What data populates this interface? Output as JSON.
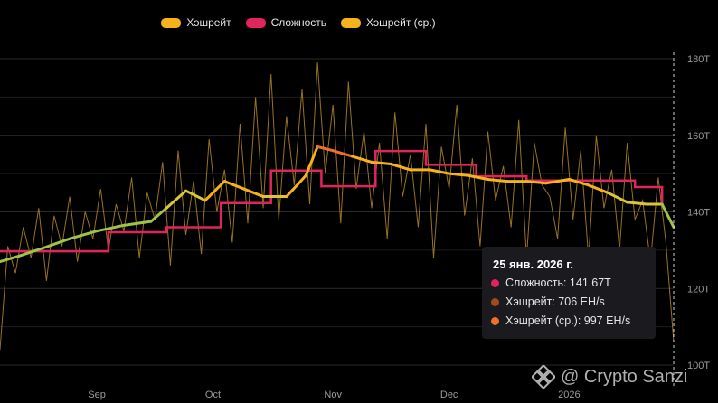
{
  "legend": {
    "items": [
      {
        "label": "Хэшрейт",
        "color": "#f5b21a"
      },
      {
        "label": "Сложность",
        "color": "#e0245e"
      },
      {
        "label": "Хэшрейт (ср.)",
        "color": "#f5b21a"
      }
    ]
  },
  "tooltip": {
    "date": "25 янв. 2026 г.",
    "rows": [
      {
        "text": "Сложность: 141.67T",
        "color": "#e0245e"
      },
      {
        "text": "Хэшрейт: 706 EH/s",
        "color": "#a04a22"
      },
      {
        "text": "Хэшрейт (ср.): 997 EH/s",
        "color": "#f0702a"
      }
    ]
  },
  "watermark": "@ Crypto Sanzi",
  "chart_data": {
    "type": "line",
    "title": "",
    "xlabel": "",
    "ylabel": "",
    "x_ticks": [
      "Sep",
      "Oct",
      "Nov",
      "Dec",
      "2026"
    ],
    "y_ticks": [
      "100T",
      "120T",
      "140T",
      "160T",
      "180T"
    ],
    "ylim": [
      100,
      182
    ],
    "grid": true,
    "legend_position": "top-center",
    "colors": {
      "hashrate": "#f5b21a",
      "difficulty": "#e0245e",
      "hashrate_avg_low": "#9fc24a",
      "hashrate_avg_high": "#f5b21a"
    },
    "series": [
      {
        "name": "Сложность",
        "type": "step",
        "x": [
          "2025-08-07",
          "2025-08-21",
          "2025-09-04",
          "2025-09-19",
          "2025-10-03",
          "2025-10-16",
          "2025-10-29",
          "2025-11-12",
          "2025-11-25",
          "2025-12-08",
          "2025-12-21",
          "2026-01-04",
          "2026-01-18",
          "2026-01-25"
        ],
        "values": [
          129.7,
          129.7,
          134.7,
          136.0,
          142.3,
          150.8,
          146.7,
          155.9,
          152.3,
          149.3,
          148.2,
          148.2,
          146.5,
          141.7
        ]
      },
      {
        "name": "Хэшрейт (ср.)",
        "x": [
          "2025-08-07",
          "2025-08-12",
          "2025-08-18",
          "2025-08-25",
          "2025-09-01",
          "2025-09-08",
          "2025-09-15",
          "2025-09-19",
          "2025-09-24",
          "2025-09-29",
          "2025-10-04",
          "2025-10-09",
          "2025-10-14",
          "2025-10-20",
          "2025-10-25",
          "2025-10-28",
          "2025-11-01",
          "2025-11-06",
          "2025-11-11",
          "2025-11-16",
          "2025-11-21",
          "2025-11-26",
          "2025-12-01",
          "2025-12-06",
          "2025-12-11",
          "2025-12-16",
          "2025-12-21",
          "2025-12-26",
          "2026-01-01",
          "2026-01-06",
          "2026-01-11",
          "2026-01-16",
          "2026-01-21",
          "2026-01-25",
          "2026-01-28"
        ],
        "values": [
          127,
          128.5,
          130.5,
          133,
          135,
          136.5,
          137.5,
          141,
          145.5,
          143,
          148,
          146,
          144,
          144,
          149.5,
          157,
          156,
          154.5,
          153,
          152.5,
          151,
          151,
          150,
          149.5,
          148.5,
          148,
          148,
          147.5,
          148.5,
          147,
          145,
          142.5,
          142,
          142,
          136
        ]
      },
      {
        "name": "Хэшрейт",
        "x": [
          "2025-08-07",
          "2025-08-09",
          "2025-08-11",
          "2025-08-13",
          "2025-08-15",
          "2025-08-17",
          "2025-08-19",
          "2025-08-21",
          "2025-08-23",
          "2025-08-25",
          "2025-08-27",
          "2025-08-29",
          "2025-08-31",
          "2025-09-02",
          "2025-09-04",
          "2025-09-06",
          "2025-09-08",
          "2025-09-10",
          "2025-09-12",
          "2025-09-14",
          "2025-09-16",
          "2025-09-18",
          "2025-09-20",
          "2025-09-22",
          "2025-09-24",
          "2025-09-26",
          "2025-09-28",
          "2025-09-30",
          "2025-10-02",
          "2025-10-04",
          "2025-10-06",
          "2025-10-08",
          "2025-10-10",
          "2025-10-12",
          "2025-10-14",
          "2025-10-16",
          "2025-10-18",
          "2025-10-20",
          "2025-10-22",
          "2025-10-24",
          "2025-10-26",
          "2025-10-28",
          "2025-10-30",
          "2025-11-01",
          "2025-11-03",
          "2025-11-05",
          "2025-11-07",
          "2025-11-09",
          "2025-11-11",
          "2025-11-13",
          "2025-11-15",
          "2025-11-17",
          "2025-11-19",
          "2025-11-21",
          "2025-11-23",
          "2025-11-25",
          "2025-11-27",
          "2025-11-29",
          "2025-12-01",
          "2025-12-03",
          "2025-12-05",
          "2025-12-07",
          "2025-12-09",
          "2025-12-11",
          "2025-12-13",
          "2025-12-15",
          "2025-12-17",
          "2025-12-19",
          "2025-12-21",
          "2025-12-23",
          "2025-12-25",
          "2025-12-27",
          "2025-12-29",
          "2025-12-31",
          "2026-01-02",
          "2026-01-04",
          "2026-01-06",
          "2026-01-08",
          "2026-01-10",
          "2026-01-12",
          "2026-01-14",
          "2026-01-16",
          "2026-01-18",
          "2026-01-20",
          "2026-01-22",
          "2026-01-24",
          "2026-01-26",
          "2026-01-28"
        ],
        "values": [
          104,
          131,
          124,
          136,
          128,
          141,
          122,
          139,
          131,
          144,
          127,
          140,
          133,
          146,
          130,
          142,
          135,
          149,
          128,
          145,
          138,
          153,
          126,
          156,
          134,
          148,
          129,
          159,
          140,
          151,
          132,
          163,
          137,
          170,
          141,
          176,
          138,
          165,
          147,
          172,
          142,
          179,
          150,
          168,
          137,
          174,
          146,
          161,
          141,
          158,
          133,
          166,
          144,
          155,
          136,
          163,
          128,
          157,
          146,
          168,
          139,
          154,
          131,
          161,
          143,
          152,
          136,
          164,
          128,
          158,
          147,
          144,
          133,
          162,
          138,
          156,
          128,
          160,
          141,
          151,
          130,
          158,
          138,
          143,
          127,
          149,
          132,
          106
        ]
      }
    ]
  }
}
